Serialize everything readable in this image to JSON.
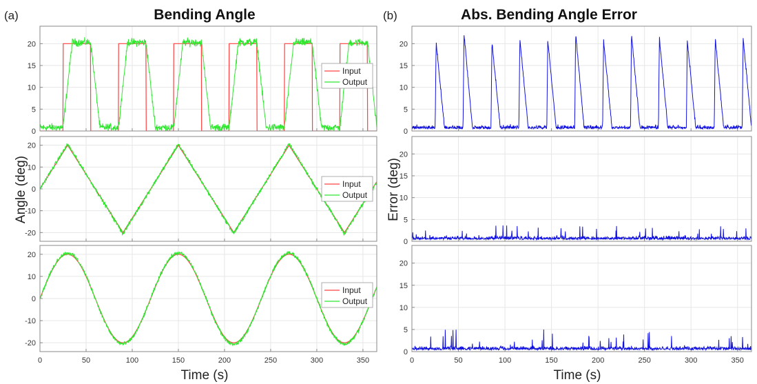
{
  "figure": {
    "left_tag": "(a)",
    "right_tag": "(b)",
    "left_title": "Bending Angle",
    "right_title": "Abs. Bending Angle Error",
    "left_ylabel": "Angle (deg)",
    "right_ylabel": "Error (deg)",
    "xlabel": "Time (s)",
    "x_ticks": [
      "0",
      "50",
      "100",
      "150",
      "200",
      "250",
      "300",
      "350"
    ],
    "legend_labels": [
      "Input",
      "Output"
    ],
    "colors": {
      "input": "#ff4040",
      "output": "#2ee62e",
      "error": "#1010e0",
      "grid": "#e6e6e6",
      "axes": "#888888"
    }
  },
  "chart_data": [
    {
      "type": "line",
      "title": "Bending Angle",
      "ylabel": "Angle (deg)",
      "xlabel": "",
      "xlim": [
        0,
        365
      ],
      "ylim": [
        0,
        24
      ],
      "yticks": [
        "0",
        "5",
        "10",
        "15",
        "20"
      ],
      "grid": true,
      "legend": "right",
      "series": [
        {
          "name": "Input",
          "x": [
            0,
            25,
            25,
            55,
            55,
            85,
            85,
            115,
            115,
            145,
            145,
            175,
            175,
            205,
            205,
            235,
            235,
            265,
            265,
            295,
            295,
            325,
            325,
            355,
            355,
            365
          ],
          "y": [
            0,
            0,
            20,
            20,
            0,
            0,
            20,
            20,
            0,
            0,
            20,
            20,
            0,
            0,
            20,
            20,
            0,
            0,
            20,
            20,
            0,
            0,
            20,
            20,
            0,
            0
          ]
        },
        {
          "name": "Output",
          "x": [
            0,
            25,
            35,
            55,
            65,
            85,
            95,
            115,
            125,
            145,
            155,
            175,
            185,
            205,
            215,
            235,
            245,
            265,
            275,
            295,
            305,
            325,
            335,
            355,
            365
          ],
          "y": [
            0.8,
            0.8,
            20.3,
            20.3,
            0.8,
            0.8,
            20.3,
            20.3,
            0.8,
            0.8,
            20.3,
            20.3,
            0.8,
            0.8,
            20.3,
            20.3,
            0.8,
            0.8,
            20.3,
            20.3,
            0.8,
            0.8,
            20.3,
            20.3,
            0.8
          ]
        }
      ]
    },
    {
      "type": "line",
      "ylabel": "Angle (deg)",
      "xlabel": "",
      "xlim": [
        0,
        365
      ],
      "ylim": [
        -24,
        24
      ],
      "yticks": [
        "-20",
        "-10",
        "0",
        "10",
        "20"
      ],
      "grid": true,
      "legend": "right",
      "series": [
        {
          "name": "Input",
          "x": [
            0,
            30,
            90,
            150,
            210,
            270,
            330,
            365
          ],
          "y": [
            0,
            20,
            -20,
            20,
            -20,
            20,
            -20,
            3.3
          ]
        },
        {
          "name": "Output",
          "x": [
            0,
            30,
            90,
            150,
            210,
            270,
            330,
            365
          ],
          "y": [
            0,
            20.5,
            -20.5,
            20.5,
            -20.5,
            20.5,
            -20.5,
            3.3
          ]
        }
      ]
    },
    {
      "type": "line",
      "ylabel": "Angle (deg)",
      "xlabel": "Time (s)",
      "xlim": [
        0,
        365
      ],
      "ylim": [
        -24,
        24
      ],
      "yticks": [
        "-20",
        "-10",
        "0",
        "10",
        "20"
      ],
      "grid": true,
      "legend": "right",
      "series": [
        {
          "name": "Input",
          "function": "20*sin(2*pi*x/120)",
          "period": 120,
          "amplitude": 20
        },
        {
          "name": "Output",
          "function": "20.5*sin(2*pi*x/120)",
          "period": 120,
          "amplitude": 20.5
        }
      ]
    },
    {
      "type": "line",
      "title": "Abs. Bending Angle Error",
      "ylabel": "Error (deg)",
      "xlabel": "",
      "xlim": [
        0,
        365
      ],
      "ylim": [
        0,
        24
      ],
      "yticks": [
        "0",
        "5",
        "10",
        "15",
        "20"
      ],
      "grid": true,
      "series": [
        {
          "name": "",
          "x": [
            0,
            25,
            26,
            35,
            55,
            56,
            65,
            85,
            86,
            95,
            115,
            116,
            125,
            145,
            146,
            155,
            175,
            176,
            185,
            205,
            206,
            215,
            235,
            236,
            245,
            265,
            266,
            275,
            295,
            296,
            305,
            325,
            326,
            335,
            355,
            356,
            365
          ],
          "y": [
            1,
            1,
            20.5,
            1,
            1,
            22.5,
            1,
            1,
            20.5,
            1,
            1,
            21.5,
            1,
            1,
            21,
            1,
            1,
            22.5,
            1,
            1,
            21,
            1,
            1,
            22.5,
            1,
            1,
            21.5,
            1,
            1,
            21,
            1,
            1,
            21.5,
            1,
            1,
            21.5,
            1
          ]
        }
      ]
    },
    {
      "type": "line",
      "ylabel": "Error (deg)",
      "xlabel": "",
      "xlim": [
        0,
        365
      ],
      "ylim": [
        0,
        24
      ],
      "yticks": [
        "0",
        "5",
        "10",
        "15",
        "20"
      ],
      "grid": true,
      "series": [
        {
          "name": "",
          "x": [
            0,
            365
          ],
          "y": [
            1,
            1
          ],
          "noise_max": 4.3
        }
      ]
    },
    {
      "type": "line",
      "ylabel": "Error (deg)",
      "xlabel": "Time (s)",
      "xlim": [
        0,
        365
      ],
      "ylim": [
        0,
        24
      ],
      "yticks": [
        "0",
        "5",
        "10",
        "15",
        "20"
      ],
      "grid": true,
      "series": [
        {
          "name": "",
          "x": [
            0,
            365
          ],
          "y": [
            1,
            1
          ],
          "noise_max": 5.6
        }
      ]
    }
  ]
}
